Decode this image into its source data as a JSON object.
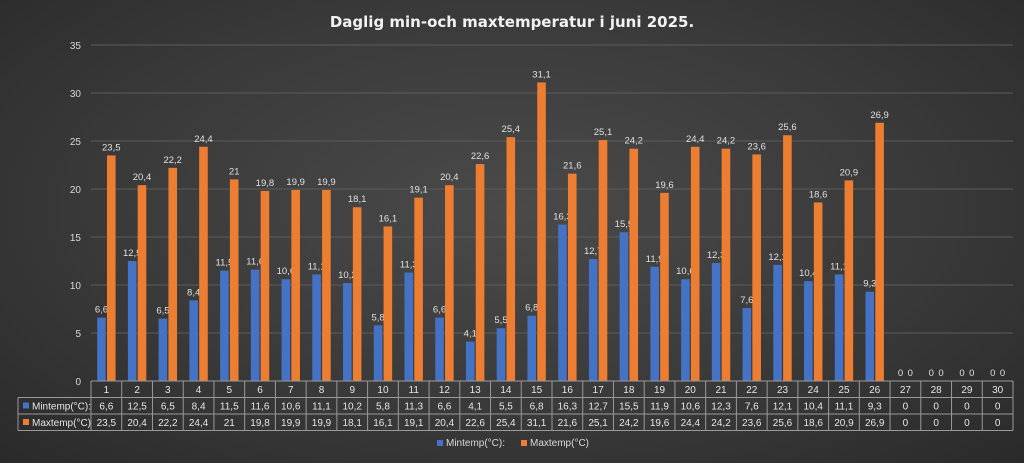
{
  "chart_data": {
    "type": "bar",
    "title": "Daglig min-och maxtemperatur i juni 2025.",
    "categories": [
      "1",
      "2",
      "3",
      "4",
      "5",
      "6",
      "7",
      "8",
      "9",
      "10",
      "11",
      "12",
      "13",
      "14",
      "15",
      "16",
      "17",
      "18",
      "19",
      "20",
      "21",
      "22",
      "23",
      "24",
      "25",
      "26",
      "27",
      "28",
      "29",
      "30"
    ],
    "series": [
      {
        "name": "Mintemp(°C):",
        "color": "#4472C4",
        "values": [
          6.6,
          12.5,
          6.5,
          8.4,
          11.5,
          11.6,
          10.6,
          11.1,
          10.2,
          5.8,
          11.3,
          6.6,
          4.1,
          5.5,
          6.8,
          16.3,
          12.7,
          15.5,
          11.9,
          10.6,
          12.3,
          7.6,
          12.1,
          10.4,
          11.1,
          9.3,
          0,
          0,
          0,
          0
        ],
        "labels": [
          "6,6",
          "12,5",
          "6,5",
          "8,4",
          "11,5",
          "11,6",
          "10,6",
          "11,1",
          "10,2",
          "5,8",
          "11,3",
          "6,6",
          "4,1",
          "5,5",
          "6,8",
          "16,3",
          "12,7",
          "15,5",
          "11,9",
          "10,6",
          "12,3",
          "7,6",
          "12,1",
          "10,4",
          "11,1",
          "9,3",
          "0",
          "0",
          "0",
          "0"
        ]
      },
      {
        "name": "Maxtemp(°C)",
        "color": "#ED7D31",
        "values": [
          23.5,
          20.4,
          22.2,
          24.4,
          21,
          19.8,
          19.9,
          19.9,
          18.1,
          16.1,
          19.1,
          20.4,
          22.6,
          25.4,
          31.1,
          21.6,
          25.1,
          24.2,
          19.6,
          24.4,
          24.2,
          23.6,
          25.6,
          18.6,
          20.9,
          26.9,
          0,
          0,
          0,
          0
        ],
        "labels": [
          "23,5",
          "20,4",
          "22,2",
          "24,4",
          "21",
          "19,8",
          "19,9",
          "19,9",
          "18,1",
          "16,1",
          "19,1",
          "20,4",
          "22,6",
          "25,4",
          "31,1",
          "21,6",
          "25,1",
          "24,2",
          "19,6",
          "24,4",
          "24,2",
          "23,6",
          "25,6",
          "18,6",
          "20,9",
          "26,9",
          "0",
          "0",
          "0",
          "0"
        ]
      }
    ],
    "ylim": [
      0,
      35
    ],
    "yticks": [
      "0",
      "5",
      "10",
      "15",
      "20",
      "25",
      "30",
      "35"
    ],
    "grid": true,
    "legend_position": "bottom",
    "data_table": true
  }
}
